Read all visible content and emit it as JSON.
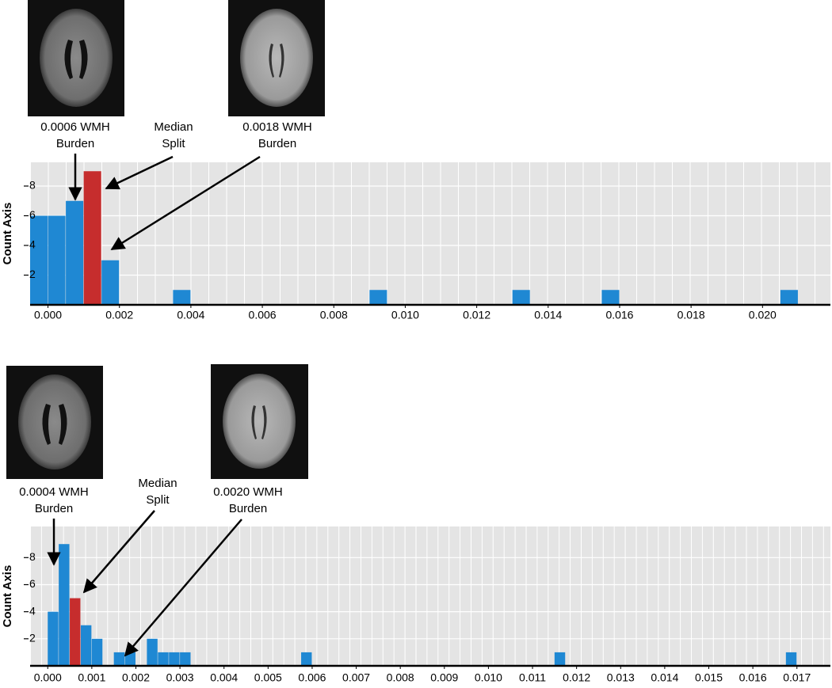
{
  "chart_data": [
    {
      "type": "histogram",
      "ylabel": "Count Axis",
      "bins": [
        -0.0005,
        0,
        0.0005,
        0.001,
        0.0015,
        0.002,
        0.0035,
        0.004,
        0.009,
        0.0095,
        0.013,
        0.0135,
        0.0155,
        0.016,
        0.0205,
        0.021
      ],
      "values": [
        6,
        6,
        7,
        9,
        3,
        0,
        1,
        0,
        1,
        0,
        1,
        0,
        1,
        0,
        1
      ],
      "colors": [
        "#1f88d3",
        "#1f88d3",
        "#1f88d3",
        "#c62d2d",
        "#1f88d3",
        "#1f88d3",
        "#1f88d3",
        "#1f88d3",
        "#1f88d3",
        "#1f88d3",
        "#1f88d3",
        "#1f88d3",
        "#1f88d3",
        "#1f88d3",
        "#1f88d3"
      ],
      "xlim": [
        -0.0005,
        0.0219
      ],
      "ylim": [
        0,
        9.6
      ],
      "xticks": [
        {
          "value": 0,
          "label": "0.000"
        },
        {
          "value": 0.002,
          "label": "0.002"
        },
        {
          "value": 0.004,
          "label": "0.004"
        },
        {
          "value": 0.006,
          "label": "0.006"
        },
        {
          "value": 0.008,
          "label": "0.008"
        },
        {
          "value": 0.01,
          "label": "0.010"
        },
        {
          "value": 0.012,
          "label": "0.012"
        },
        {
          "value": 0.014,
          "label": "0.014"
        },
        {
          "value": 0.016,
          "label": "0.016"
        },
        {
          "value": 0.018,
          "label": "0.018"
        },
        {
          "value": 0.02,
          "label": "0.020"
        }
      ],
      "yticks": [
        2,
        4,
        6,
        8
      ],
      "grid": true,
      "annotations": [
        {
          "lines": [
            "0.0006 WMH",
            "Burden"
          ]
        },
        {
          "lines": [
            "Median",
            "Split"
          ]
        },
        {
          "lines": [
            "0.0018 WMH",
            "Burden"
          ]
        }
      ]
    },
    {
      "type": "histogram",
      "ylabel": "Count Axis",
      "bins": [
        0,
        0.00025,
        0.0005,
        0.00075,
        0.001,
        0.00125,
        0.0015,
        0.00175,
        0.002,
        0.00225,
        0.0025,
        0.00275,
        0.003,
        0.00325,
        0.00575,
        0.006,
        0.0115,
        0.01175,
        0.01675,
        0.017
      ],
      "values": [
        4,
        9,
        5,
        3,
        2,
        0,
        1,
        1,
        0,
        2,
        1,
        1,
        1,
        0,
        1,
        0,
        1,
        0,
        1
      ],
      "colors": [
        "#1f88d3",
        "#1f88d3",
        "#c62d2d",
        "#1f88d3",
        "#1f88d3",
        "#1f88d3",
        "#1f88d3",
        "#1f88d3",
        "#1f88d3",
        "#1f88d3",
        "#1f88d3",
        "#1f88d3",
        "#1f88d3",
        "#1f88d3",
        "#1f88d3",
        "#1f88d3",
        "#1f88d3",
        "#1f88d3",
        "#1f88d3"
      ],
      "xlim": [
        -0.0004,
        0.01776
      ],
      "ylim": [
        0,
        10.3
      ],
      "xticks": [
        {
          "value": 0,
          "label": "0.000"
        },
        {
          "value": 0.001,
          "label": "0.001"
        },
        {
          "value": 0.002,
          "label": "0.002"
        },
        {
          "value": 0.003,
          "label": "0.003"
        },
        {
          "value": 0.004,
          "label": "0.004"
        },
        {
          "value": 0.005,
          "label": "0.005"
        },
        {
          "value": 0.006,
          "label": "0.006"
        },
        {
          "value": 0.007,
          "label": "0.007"
        },
        {
          "value": 0.008,
          "label": "0.008"
        },
        {
          "value": 0.009,
          "label": "0.009"
        },
        {
          "value": 0.01,
          "label": "0.010"
        },
        {
          "value": 0.011,
          "label": "0.011"
        },
        {
          "value": 0.012,
          "label": "0.012"
        },
        {
          "value": 0.013,
          "label": "0.013"
        },
        {
          "value": 0.014,
          "label": "0.014"
        },
        {
          "value": 0.015,
          "label": "0.015"
        },
        {
          "value": 0.016,
          "label": "0.016"
        },
        {
          "value": 0.017,
          "label": "0.017"
        }
      ],
      "yticks": [
        2,
        4,
        6,
        8
      ],
      "grid": true,
      "annotations": [
        {
          "lines": [
            "0.0004 WMH",
            "Burden"
          ]
        },
        {
          "lines": [
            "Median",
            "Split"
          ]
        },
        {
          "lines": [
            "0.0020 WMH",
            "Burden"
          ]
        }
      ]
    }
  ]
}
